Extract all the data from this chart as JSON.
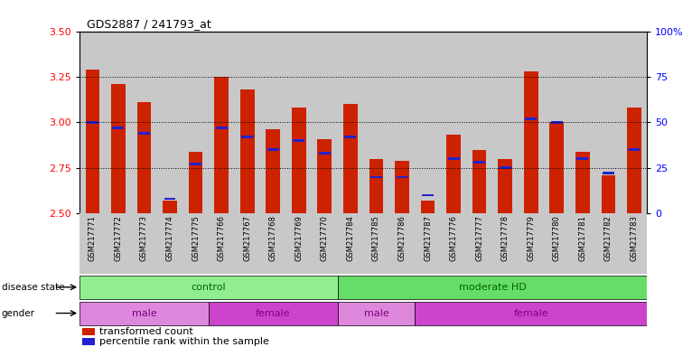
{
  "title": "GDS2887 / 241793_at",
  "samples": [
    "GSM217771",
    "GSM217772",
    "GSM217773",
    "GSM217774",
    "GSM217775",
    "GSM217766",
    "GSM217767",
    "GSM217768",
    "GSM217769",
    "GSM217770",
    "GSM217784",
    "GSM217785",
    "GSM217786",
    "GSM217787",
    "GSM217776",
    "GSM217777",
    "GSM217778",
    "GSM217779",
    "GSM217780",
    "GSM217781",
    "GSM217782",
    "GSM217783"
  ],
  "transformed_count": [
    3.29,
    3.21,
    3.11,
    2.57,
    2.84,
    3.25,
    3.18,
    2.96,
    3.08,
    2.91,
    3.1,
    2.8,
    2.79,
    2.57,
    2.93,
    2.85,
    2.8,
    3.28,
    3.0,
    2.84,
    2.71,
    3.08
  ],
  "percentile_rank": [
    50,
    47,
    44,
    8,
    27,
    47,
    42,
    35,
    40,
    33,
    42,
    20,
    20,
    10,
    30,
    28,
    25,
    52,
    50,
    30,
    22,
    35
  ],
  "ylim_left": [
    2.5,
    3.5
  ],
  "yticks_left": [
    2.5,
    2.75,
    3.0,
    3.25,
    3.5
  ],
  "yticks_right": [
    0,
    25,
    50,
    75,
    100
  ],
  "disease_state_groups": [
    {
      "label": "control",
      "start": 0,
      "end": 10,
      "color": "#90EE90"
    },
    {
      "label": "moderate HD",
      "start": 10,
      "end": 22,
      "color": "#66DD66"
    }
  ],
  "gender_groups": [
    {
      "label": "male",
      "start": 0,
      "end": 5,
      "color": "#DD88DD"
    },
    {
      "label": "female",
      "start": 5,
      "end": 10,
      "color": "#CC44CC"
    },
    {
      "label": "male",
      "start": 10,
      "end": 13,
      "color": "#DD88DD"
    },
    {
      "label": "female",
      "start": 13,
      "end": 22,
      "color": "#CC44CC"
    }
  ],
  "bar_color": "#CC2200",
  "blue_color": "#2222CC",
  "bar_width": 0.55,
  "col_bg_color": "#C8C8C8",
  "legend_items": [
    "transformed count",
    "percentile rank within the sample"
  ],
  "disease_state_label": "disease state",
  "gender_label": "gender",
  "right_ytick_labels": [
    "0",
    "25",
    "50",
    "75",
    "100%"
  ]
}
